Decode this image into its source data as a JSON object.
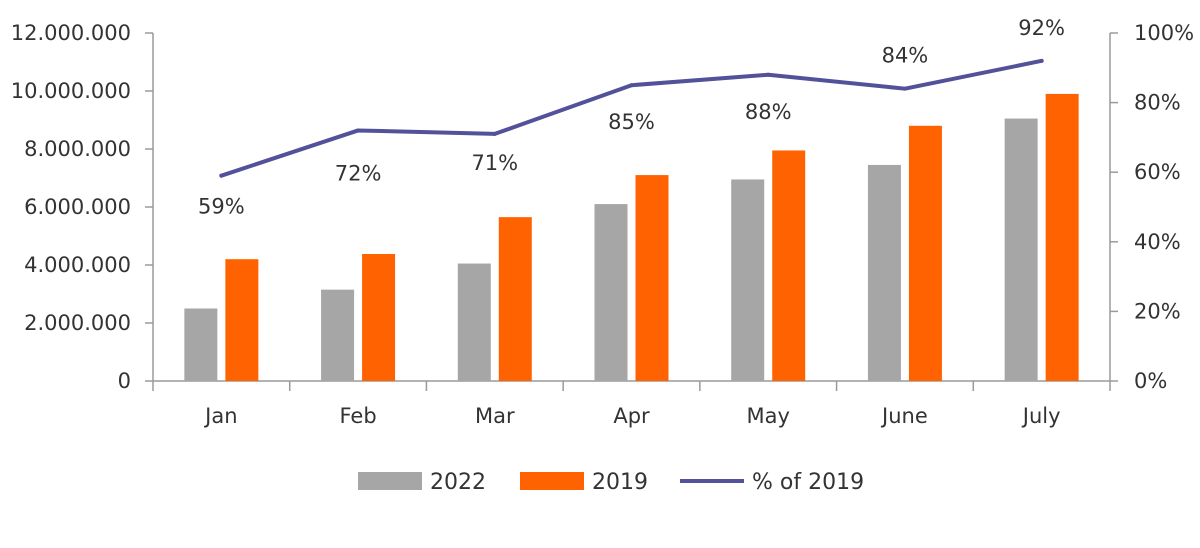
{
  "chart_data": {
    "type": "bar",
    "categories": [
      "Jan",
      "Feb",
      "Mar",
      "Apr",
      "May",
      "June",
      "July"
    ],
    "series": [
      {
        "name": "2022",
        "type": "bar",
        "color": "#a6a6a6",
        "values": [
          2500000,
          3150000,
          4050000,
          6100000,
          6950000,
          7450000,
          9050000
        ]
      },
      {
        "name": "2019",
        "type": "bar",
        "color": "#ff6200",
        "values": [
          4200000,
          4380000,
          5650000,
          7100000,
          7950000,
          8800000,
          9900000
        ]
      },
      {
        "name": "% of 2019",
        "type": "line",
        "axis": "right",
        "color": "#525199",
        "values": [
          59,
          72,
          71,
          85,
          88,
          84,
          92
        ],
        "labels": [
          "59%",
          "72%",
          "71%",
          "85%",
          "88%",
          "84%",
          "92%"
        ]
      }
    ],
    "y_left": {
      "min": 0,
      "max": 12000000,
      "ticks": [
        0,
        2000000,
        4000000,
        6000000,
        8000000,
        10000000,
        12000000
      ],
      "tick_labels": [
        "0",
        "2.000.000",
        "4.000.000",
        "6.000.000",
        "8.000.000",
        "10.000.000",
        "12.000.000"
      ]
    },
    "y_right": {
      "min": 0,
      "max": 100,
      "ticks": [
        0,
        20,
        40,
        60,
        80,
        100
      ],
      "tick_labels": [
        "0%",
        "20%",
        "40%",
        "60%",
        "80%",
        "100%"
      ]
    },
    "legend": [
      "2022",
      "2019",
      "% of 2019"
    ],
    "legend_position": "bottom",
    "grid": false
  }
}
